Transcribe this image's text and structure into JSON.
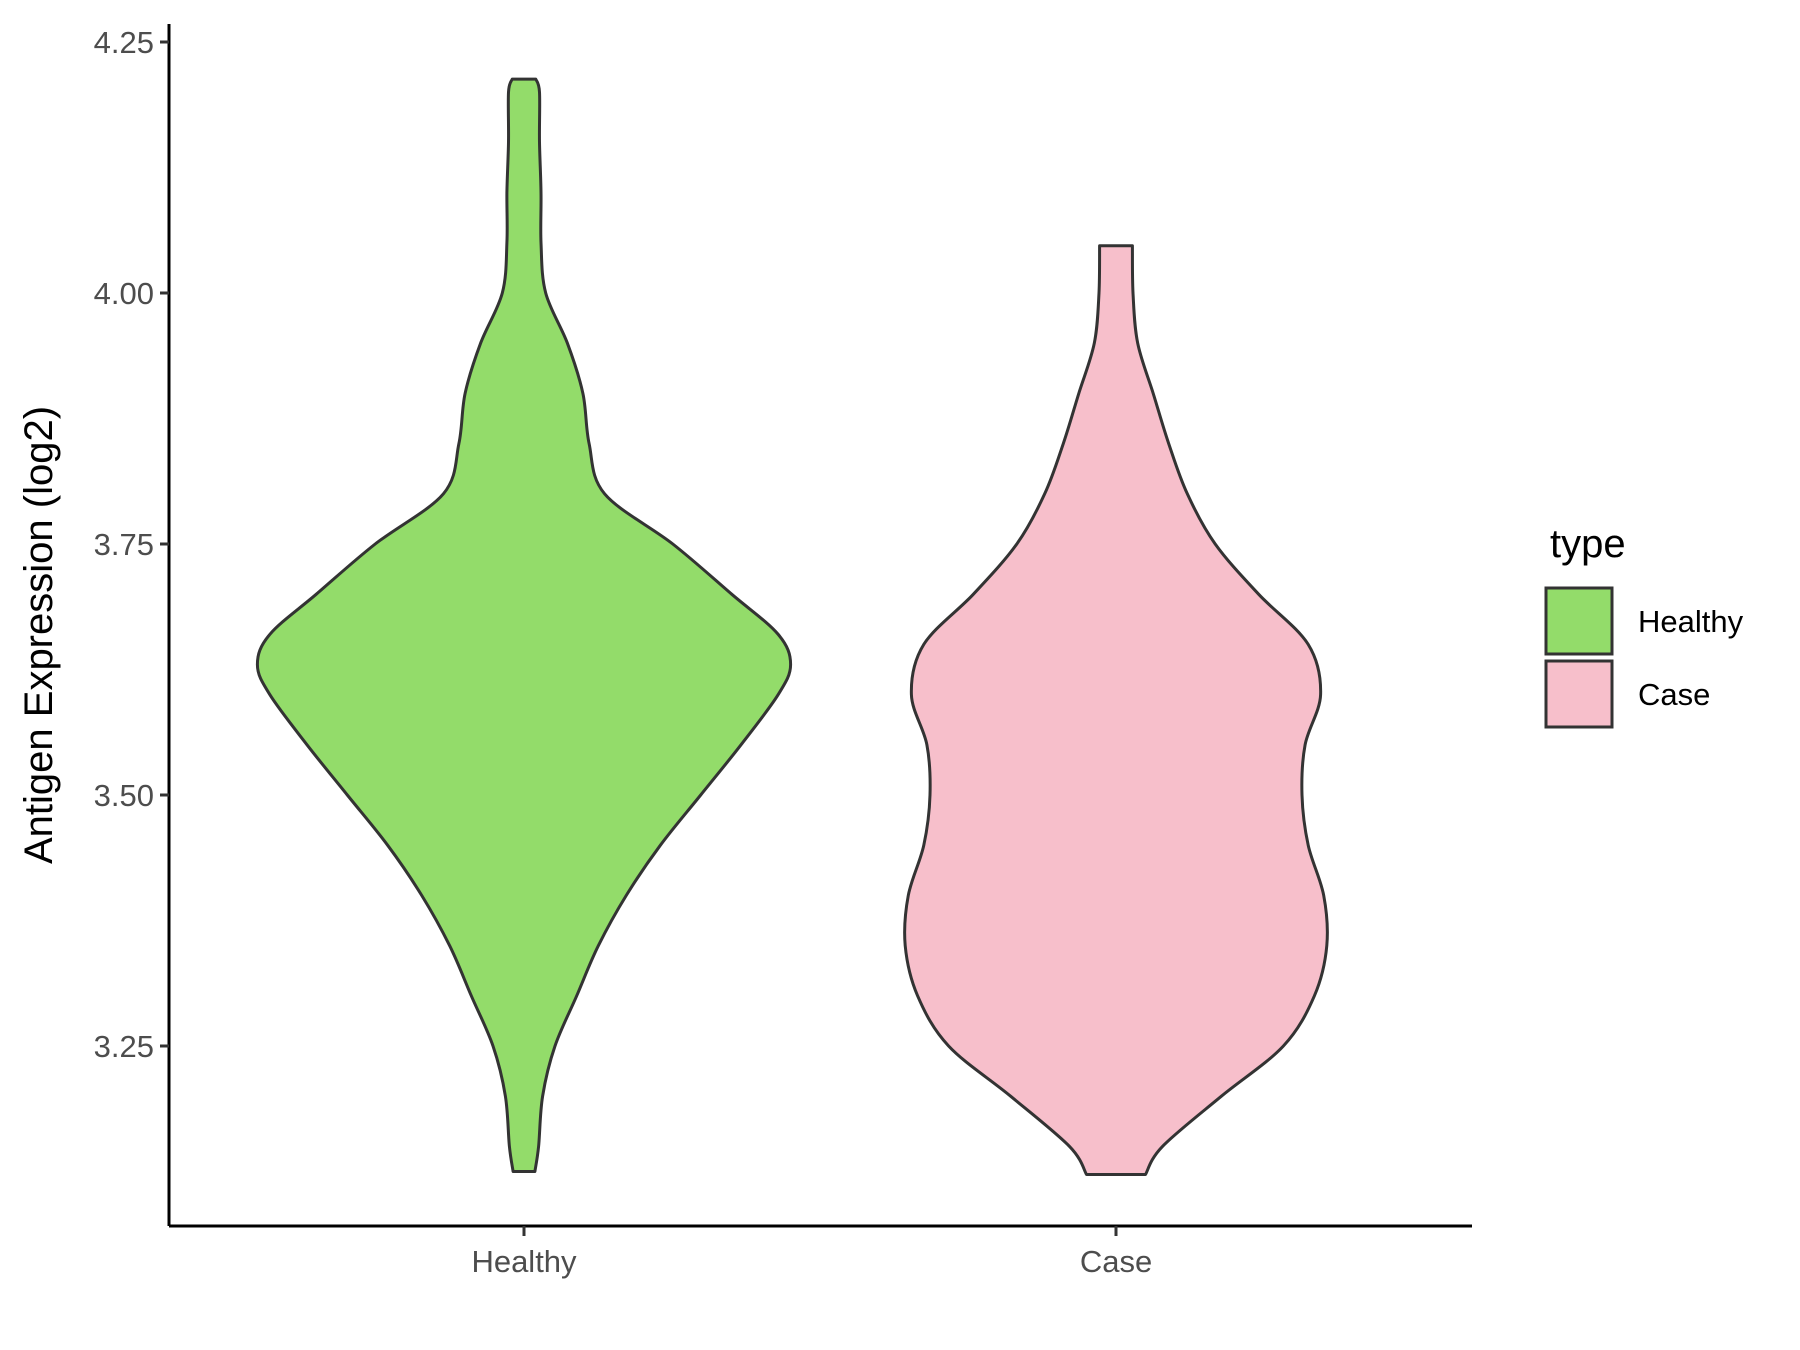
{
  "chart_data": {
    "type": "violin",
    "ylabel": "Antigen Expression (log2)",
    "xlabel": "",
    "ylim": [
      3.07,
      4.27
    ],
    "y_ticks": [
      "3.25",
      "3.50",
      "3.75",
      "4.00",
      "4.25"
    ],
    "categories": [
      "Healthy",
      "Case"
    ],
    "legend": {
      "title": "type",
      "position": "right",
      "entries": [
        "Healthy",
        "Case"
      ]
    },
    "grid": false,
    "series": [
      {
        "name": "Healthy",
        "color": "#93DC6A",
        "min": 3.125,
        "max": 4.213,
        "profile": [
          [
            3.125,
            0.035
          ],
          [
            3.15,
            0.047
          ],
          [
            3.2,
            0.06
          ],
          [
            3.25,
            0.1
          ],
          [
            3.3,
            0.17
          ],
          [
            3.35,
            0.24
          ],
          [
            3.4,
            0.33
          ],
          [
            3.45,
            0.44
          ],
          [
            3.5,
            0.57
          ],
          [
            3.55,
            0.7
          ],
          [
            3.6,
            0.82
          ],
          [
            3.63,
            0.86
          ],
          [
            3.66,
            0.82
          ],
          [
            3.7,
            0.67
          ],
          [
            3.75,
            0.48
          ],
          [
            3.8,
            0.26
          ],
          [
            3.85,
            0.21
          ],
          [
            3.9,
            0.19
          ],
          [
            3.95,
            0.14
          ],
          [
            4.0,
            0.07
          ],
          [
            4.05,
            0.055
          ],
          [
            4.1,
            0.055
          ],
          [
            4.15,
            0.05
          ],
          [
            4.2,
            0.05
          ],
          [
            4.213,
            0.038
          ]
        ]
      },
      {
        "name": "Case",
        "color": "#F7BFCB",
        "min": 3.122,
        "max": 4.047,
        "profile": [
          [
            3.122,
            0.095
          ],
          [
            3.15,
            0.15
          ],
          [
            3.2,
            0.34
          ],
          [
            3.25,
            0.54
          ],
          [
            3.3,
            0.64
          ],
          [
            3.35,
            0.68
          ],
          [
            3.4,
            0.67
          ],
          [
            3.45,
            0.62
          ],
          [
            3.5,
            0.6
          ],
          [
            3.55,
            0.61
          ],
          [
            3.6,
            0.66
          ],
          [
            3.65,
            0.62
          ],
          [
            3.7,
            0.46
          ],
          [
            3.75,
            0.32
          ],
          [
            3.8,
            0.23
          ],
          [
            3.85,
            0.17
          ],
          [
            3.9,
            0.12
          ],
          [
            3.95,
            0.07
          ],
          [
            4.0,
            0.055
          ],
          [
            4.047,
            0.053
          ]
        ]
      }
    ]
  }
}
